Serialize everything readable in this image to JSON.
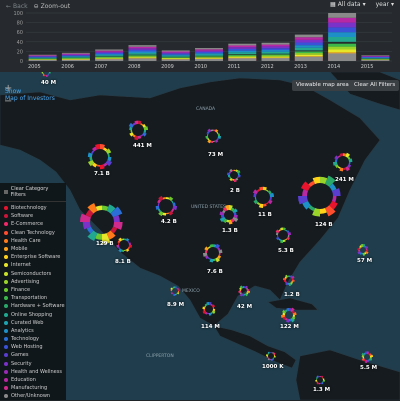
{
  "toolbar": {
    "back_label": "Back",
    "zoom_label": "Zoom-out",
    "dataset_label": "All data",
    "group_label": "year"
  },
  "chart_data": {
    "type": "bar",
    "stacked": true,
    "categories": [
      "2005",
      "2006",
      "2007",
      "2008",
      "2009",
      "2010",
      "2011",
      "2012",
      "2013",
      "2014",
      "2015"
    ],
    "values": [
      13,
      17,
      24,
      33,
      22,
      27,
      36,
      38,
      55,
      100,
      12
    ],
    "yticks": [
      "100",
      "80",
      "60",
      "40",
      "20",
      "0"
    ],
    "ylim": [
      0,
      100
    ],
    "grid": true
  },
  "map": {
    "title_line1": "Show",
    "title_line2": "Map of Investors",
    "viewable_label": "Viewable map area",
    "clear_filters_label": "Clear All Filters",
    "zoom_in": "+",
    "zoom_out": "−",
    "geo_labels": [
      "CANADA",
      "UNITED STATES",
      "MEXICO",
      "CLIPPERTON"
    ],
    "bubbles": [
      {
        "label": "40 M"
      },
      {
        "label": "441 M"
      },
      {
        "label": "73 M"
      },
      {
        "label": "7.1 B"
      },
      {
        "label": "241 M"
      },
      {
        "label": "2 B"
      },
      {
        "label": "11 B"
      },
      {
        "label": "4.2 B"
      },
      {
        "label": "1.3 B"
      },
      {
        "label": "124 B"
      },
      {
        "label": "129 B"
      },
      {
        "label": "5.3 B"
      },
      {
        "label": "8.1 B"
      },
      {
        "label": "57 M"
      },
      {
        "label": "7.6 B"
      },
      {
        "label": "1.2 B"
      },
      {
        "label": "8.9 M"
      },
      {
        "label": "42 M"
      },
      {
        "label": "114 M"
      },
      {
        "label": "122 M"
      },
      {
        "label": "1000 K"
      },
      {
        "label": "5.5 M"
      },
      {
        "label": "1.3 M"
      }
    ]
  },
  "legend": {
    "header": "Clear Category Filters",
    "items": [
      {
        "label": "Biotechnology",
        "color": "#e8142e"
      },
      {
        "label": "Software",
        "color": "#c9163a"
      },
      {
        "label": "E-Commerce",
        "color": "#f02a6a"
      },
      {
        "label": "Clean Technology",
        "color": "#ff4d2e"
      },
      {
        "label": "Health Care",
        "color": "#ff7a1a"
      },
      {
        "label": "Mobile",
        "color": "#ffa21a"
      },
      {
        "label": "Enterprise Software",
        "color": "#ffd21a"
      },
      {
        "label": "Internet",
        "color": "#e6e62a"
      },
      {
        "label": "Semiconductors",
        "color": "#c8e02a"
      },
      {
        "label": "Advertising",
        "color": "#9ad42a"
      },
      {
        "label": "Finance",
        "color": "#6cc82e"
      },
      {
        "label": "Transportation",
        "color": "#3cb84a"
      },
      {
        "label": "Hardware + Software",
        "color": "#2aa86a"
      },
      {
        "label": "Online Shopping",
        "color": "#22a890"
      },
      {
        "label": "Curated Web",
        "color": "#1ea4b0"
      },
      {
        "label": "Analytics",
        "color": "#1e90c8"
      },
      {
        "label": "Technology",
        "color": "#2a6ed8"
      },
      {
        "label": "Web Hosting",
        "color": "#3a52d8"
      },
      {
        "label": "Games",
        "color": "#5a3ed0"
      },
      {
        "label": "Security",
        "color": "#7a32c8"
      },
      {
        "label": "Health and Wellness",
        "color": "#9a2ab8"
      },
      {
        "label": "Education",
        "color": "#b828a4"
      },
      {
        "label": "Manufacturing",
        "color": "#d02a8c"
      },
      {
        "label": "Other/Unknown",
        "color": "#8a8a8a"
      }
    ]
  },
  "colors": {
    "background": "#1f2428",
    "ocean": "#1f3d4c",
    "land": "#151b1f",
    "accent": "#4aa8f0"
  }
}
